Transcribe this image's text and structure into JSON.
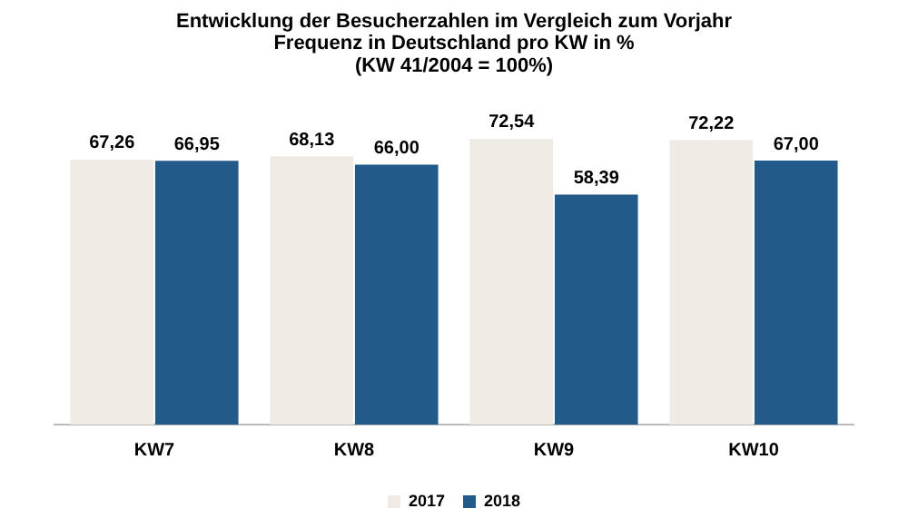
{
  "chart_data": {
    "type": "bar",
    "title": "Entwicklung der Besucherzahlen im Vergleich zum Vorjahr\nFrequenz in Deutschland pro KW in %\n(KW 41/2004 = 100%)",
    "categories": [
      "KW7",
      "KW8",
      "KW9",
      "KW10"
    ],
    "series": [
      {
        "name": "2017",
        "color": "#efebe4",
        "values": [
          67.26,
          68.13,
          72.54,
          72.22
        ],
        "value_labels": [
          "67,26",
          "68,13",
          "72,54",
          "72,22"
        ]
      },
      {
        "name": "2018",
        "color": "#225b8a",
        "values": [
          66.95,
          66.0,
          58.39,
          67.0
        ],
        "value_labels": [
          "66,95",
          "66,00",
          "58,39",
          "67,00"
        ]
      }
    ],
    "legend": "bottom",
    "grid": false
  }
}
